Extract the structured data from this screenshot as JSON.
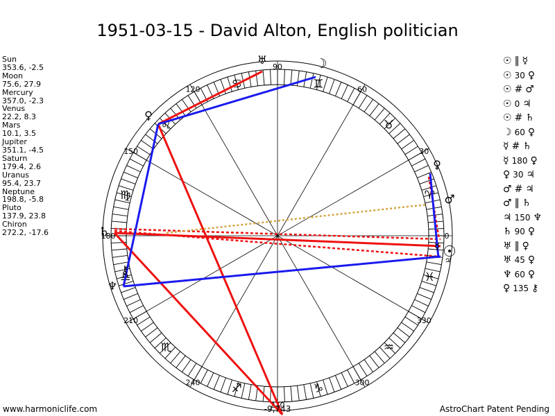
{
  "title": "1951-03-15 - David Alton, English politician",
  "planets": [
    {
      "name": "Sun",
      "values": "353.6, -2.5"
    },
    {
      "name": "Moon",
      "values": "75.6, 27.9"
    },
    {
      "name": "Mercury",
      "values": "357.0, -2.3"
    },
    {
      "name": "Venus",
      "values": "22.2, 8.3"
    },
    {
      "name": "Mars",
      "values": "10.1, 3.5"
    },
    {
      "name": "Jupiter",
      "values": "351.1, -4.5"
    },
    {
      "name": "Saturn",
      "values": "179.4, 2.6"
    },
    {
      "name": "Uranus",
      "values": "95.4, 23.7"
    },
    {
      "name": "Neptune",
      "values": "198.8, -5.8"
    },
    {
      "name": "Pluto",
      "values": "137.9, 23.8"
    },
    {
      "name": "Chiron",
      "values": "272.2, -17.6"
    }
  ],
  "aspects": [
    {
      "a": "☉",
      "sym": "‖",
      "b": "☿",
      "orb": ""
    },
    {
      "a": "☉",
      "sym": "",
      "b": "♀",
      "orb": "30"
    },
    {
      "a": "☉",
      "sym": "#",
      "b": "♂",
      "orb": ""
    },
    {
      "a": "☉",
      "sym": "",
      "b": "♃",
      "orb": "0"
    },
    {
      "a": "☉",
      "sym": "#",
      "b": "♄",
      "orb": ""
    },
    {
      "a": "☽",
      "sym": "",
      "b": "♀",
      "orb": "60"
    },
    {
      "a": "☿",
      "sym": "#",
      "b": "♄",
      "orb": ""
    },
    {
      "a": "☿",
      "sym": "",
      "b": "♀",
      "orb": "180"
    },
    {
      "a": "♀",
      "sym": "",
      "b": "♃",
      "orb": "30"
    },
    {
      "a": "♂",
      "sym": "#",
      "b": "♃",
      "orb": ""
    },
    {
      "a": "♂",
      "sym": "‖",
      "b": "♄",
      "orb": ""
    },
    {
      "a": "♃",
      "sym": "",
      "b": "♆",
      "orb": "150"
    },
    {
      "a": "♄",
      "sym": "",
      "b": "♀",
      "orb": "90"
    },
    {
      "a": "♅",
      "sym": "‖",
      "b": "♀",
      "orb": ""
    },
    {
      "a": "♅",
      "sym": "",
      "b": "♀",
      "orb": "45"
    },
    {
      "a": "♆",
      "sym": "",
      "b": "♀",
      "orb": "60"
    },
    {
      "a": "♀",
      "sym": "",
      "b": "⚷",
      "orb": "135"
    }
  ],
  "degree_labels": [
    "0",
    "30",
    "60",
    "90",
    "120",
    "150",
    "180",
    "210",
    "240",
    "270",
    "300",
    "330"
  ],
  "zodiac_signs": [
    "♈",
    "♉",
    "♊",
    "♋",
    "♌",
    "♍",
    "♎",
    "♏",
    "♐",
    "♑",
    "♒",
    "♓"
  ],
  "planet_glyphs": {
    "sun": "☉",
    "moon": "☽",
    "mercury": "☿",
    "venus": "♀",
    "mars": "♂",
    "jupiter": "♃",
    "saturn": "♄",
    "uranus": "♅",
    "neptune": "♆",
    "pluto": "♀",
    "chiron": "⚷"
  },
  "bottom_value": "-9,743",
  "footer_left": "www.harmoniclife.com",
  "footer_right": "AstroChart Patent Pending",
  "colors": {
    "red": "#ee1111",
    "blue": "#1a1aee",
    "gold": "#d4a640",
    "ring": "#000000"
  }
}
